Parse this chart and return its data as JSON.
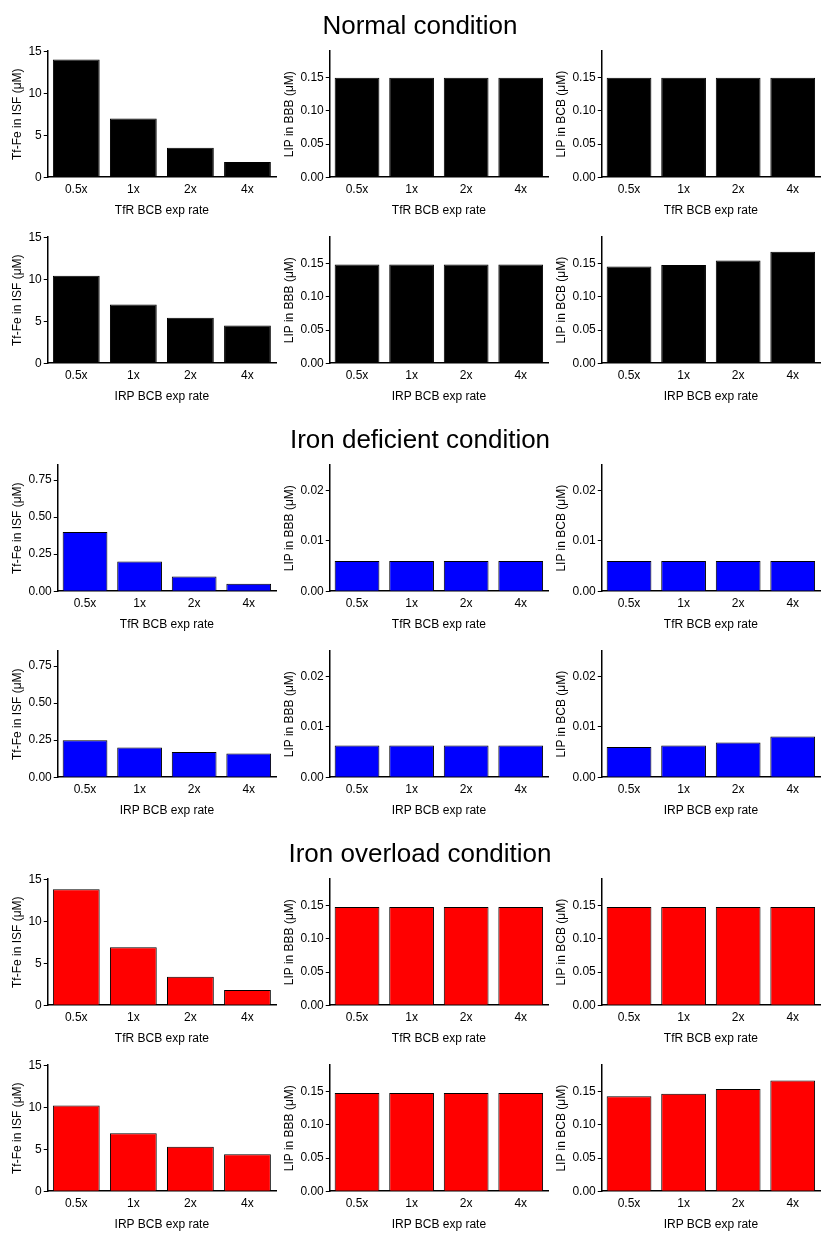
{
  "chart_data": [
    {
      "type": "other",
      "title": "Normal condition"
    },
    {
      "type": "bar",
      "categories": [
        "0.5x",
        "1x",
        "2x",
        "4x"
      ],
      "values": [
        14,
        7,
        3.5,
        1.8
      ],
      "color": "#000000",
      "xlabel": "TfR BCB exp rate",
      "ylabel": "Tf-Fe in ISF (μM)",
      "ylim": [
        0,
        15
      ],
      "yticks": [
        0,
        5,
        10,
        15
      ],
      "grid": false,
      "legend": false
    },
    {
      "type": "bar",
      "categories": [
        "0.5x",
        "1x",
        "2x",
        "4x"
      ],
      "values": [
        0.15,
        0.15,
        0.15,
        0.15
      ],
      "color": "#000000",
      "xlabel": "TfR BCB exp rate",
      "ylabel": "LIP in BBB (μM)",
      "ylim": [
        0,
        0.19
      ],
      "yticks": [
        {
          "value": 0,
          "label": "0.00"
        },
        {
          "value": 0.05,
          "label": "0.05"
        },
        {
          "value": 0.1,
          "label": "0.10"
        },
        {
          "value": 0.15,
          "label": "0.15"
        }
      ],
      "grid": false,
      "legend": false
    },
    {
      "type": "bar",
      "categories": [
        "0.5x",
        "1x",
        "2x",
        "4x"
      ],
      "values": [
        0.15,
        0.15,
        0.15,
        0.15
      ],
      "color": "#000000",
      "xlabel": "TfR BCB exp rate",
      "ylabel": "LIP in BCB (μM)",
      "ylim": [
        0,
        0.19
      ],
      "yticks": [
        {
          "value": 0,
          "label": "0.00"
        },
        {
          "value": 0.05,
          "label": "0.05"
        },
        {
          "value": 0.1,
          "label": "0.10"
        },
        {
          "value": 0.15,
          "label": "0.15"
        }
      ],
      "grid": false,
      "legend": false
    },
    {
      "type": "bar",
      "categories": [
        "0.5x",
        "1x",
        "2x",
        "4x"
      ],
      "values": [
        10.4,
        7.0,
        5.4,
        4.5
      ],
      "color": "#000000",
      "xlabel": "IRP BCB exp rate",
      "ylabel": "Tf-Fe in ISF (μM)",
      "ylim": [
        0,
        15
      ],
      "yticks": [
        0,
        5,
        10,
        15
      ],
      "grid": false,
      "legend": false
    },
    {
      "type": "bar",
      "categories": [
        "0.5x",
        "1x",
        "2x",
        "4x"
      ],
      "values": [
        0.149,
        0.149,
        0.149,
        0.149
      ],
      "color": "#000000",
      "xlabel": "IRP BCB exp rate",
      "ylabel": "LIP in BBB (μM)",
      "ylim": [
        0,
        0.19
      ],
      "yticks": [
        {
          "value": 0,
          "label": "0.00"
        },
        {
          "value": 0.05,
          "label": "0.05"
        },
        {
          "value": 0.1,
          "label": "0.10"
        },
        {
          "value": 0.15,
          "label": "0.15"
        }
      ],
      "grid": false,
      "legend": false
    },
    {
      "type": "bar",
      "categories": [
        "0.5x",
        "1x",
        "2x",
        "4x"
      ],
      "values": [
        0.146,
        0.148,
        0.155,
        0.168
      ],
      "color": "#000000",
      "xlabel": "IRP BCB exp rate",
      "ylabel": "LIP in BCB (μM)",
      "ylim": [
        0,
        0.19
      ],
      "yticks": [
        {
          "value": 0,
          "label": "0.00"
        },
        {
          "value": 0.05,
          "label": "0.05"
        },
        {
          "value": 0.1,
          "label": "0.10"
        },
        {
          "value": 0.15,
          "label": "0.15"
        }
      ],
      "grid": false,
      "legend": false
    },
    {
      "type": "other",
      "title": "Iron deficient condition"
    },
    {
      "type": "bar",
      "categories": [
        "0.5x",
        "1x",
        "2x",
        "4x"
      ],
      "values": [
        0.4,
        0.2,
        0.1,
        0.05
      ],
      "color": "#0000ff",
      "xlabel": "TfR BCB exp rate",
      "ylabel": "Tf-Fe in ISF (μM)",
      "ylim": [
        0,
        0.85
      ],
      "yticks": [
        {
          "value": 0,
          "label": "0.00"
        },
        {
          "value": 0.25,
          "label": "0.25"
        },
        {
          "value": 0.5,
          "label": "0.50"
        },
        {
          "value": 0.75,
          "label": "0.75"
        }
      ],
      "grid": false,
      "legend": false
    },
    {
      "type": "bar",
      "categories": [
        "0.5x",
        "1x",
        "2x",
        "4x"
      ],
      "values": [
        0.006,
        0.006,
        0.006,
        0.006
      ],
      "color": "#0000ff",
      "xlabel": "TfR BCB exp rate",
      "ylabel": "LIP in BBB (μM)",
      "ylim": [
        0,
        0.025
      ],
      "yticks": [
        {
          "value": 0,
          "label": "0.00"
        },
        {
          "value": 0.01,
          "label": "0.01"
        },
        {
          "value": 0.02,
          "label": "0.02"
        }
      ],
      "grid": false,
      "legend": false
    },
    {
      "type": "bar",
      "categories": [
        "0.5x",
        "1x",
        "2x",
        "4x"
      ],
      "values": [
        0.006,
        0.006,
        0.006,
        0.006
      ],
      "color": "#0000ff",
      "xlabel": "TfR BCB exp rate",
      "ylabel": "LIP in BCB (μM)",
      "ylim": [
        0,
        0.025
      ],
      "yticks": [
        {
          "value": 0,
          "label": "0.00"
        },
        {
          "value": 0.01,
          "label": "0.01"
        },
        {
          "value": 0.02,
          "label": "0.02"
        }
      ],
      "grid": false,
      "legend": false
    },
    {
      "type": "bar",
      "categories": [
        "0.5x",
        "1x",
        "2x",
        "4x"
      ],
      "values": [
        0.25,
        0.2,
        0.17,
        0.16
      ],
      "color": "#0000ff",
      "xlabel": "IRP BCB exp rate",
      "ylabel": "Tf-Fe in ISF (μM)",
      "ylim": [
        0,
        0.85
      ],
      "yticks": [
        {
          "value": 0,
          "label": "0.00"
        },
        {
          "value": 0.25,
          "label": "0.25"
        },
        {
          "value": 0.5,
          "label": "0.50"
        },
        {
          "value": 0.75,
          "label": "0.75"
        }
      ],
      "grid": false,
      "legend": false
    },
    {
      "type": "bar",
      "categories": [
        "0.5x",
        "1x",
        "2x",
        "4x"
      ],
      "values": [
        0.0063,
        0.0063,
        0.0063,
        0.0063
      ],
      "color": "#0000ff",
      "xlabel": "IRP BCB exp rate",
      "ylabel": "LIP in BBB (μM)",
      "ylim": [
        0,
        0.025
      ],
      "yticks": [
        {
          "value": 0,
          "label": "0.00"
        },
        {
          "value": 0.01,
          "label": "0.01"
        },
        {
          "value": 0.02,
          "label": "0.02"
        }
      ],
      "grid": false,
      "legend": false
    },
    {
      "type": "bar",
      "categories": [
        "0.5x",
        "1x",
        "2x",
        "4x"
      ],
      "values": [
        0.006,
        0.0063,
        0.0069,
        0.0081
      ],
      "color": "#0000ff",
      "xlabel": "IRP BCB exp rate",
      "ylabel": "LIP in BCB (μM)",
      "ylim": [
        0,
        0.025
      ],
      "yticks": [
        {
          "value": 0,
          "label": "0.00"
        },
        {
          "value": 0.01,
          "label": "0.01"
        },
        {
          "value": 0.02,
          "label": "0.02"
        }
      ],
      "grid": false,
      "legend": false
    },
    {
      "type": "other",
      "title": "Iron overload condition"
    },
    {
      "type": "bar",
      "categories": [
        "0.5x",
        "1x",
        "2x",
        "4x"
      ],
      "values": [
        13.8,
        6.9,
        3.4,
        1.8
      ],
      "color": "#ff0000",
      "xlabel": "TfR BCB exp rate",
      "ylabel": "Tf-Fe in ISF (μM)",
      "ylim": [
        0,
        15
      ],
      "yticks": [
        0,
        5,
        10,
        15
      ],
      "grid": false,
      "legend": false
    },
    {
      "type": "bar",
      "categories": [
        "0.5x",
        "1x",
        "2x",
        "4x"
      ],
      "values": [
        0.148,
        0.148,
        0.148,
        0.148
      ],
      "color": "#ff0000",
      "xlabel": "TfR BCB exp rate",
      "ylabel": "LIP in BBB (μM)",
      "ylim": [
        0,
        0.19
      ],
      "yticks": [
        {
          "value": 0,
          "label": "0.00"
        },
        {
          "value": 0.05,
          "label": "0.05"
        },
        {
          "value": 0.1,
          "label": "0.10"
        },
        {
          "value": 0.15,
          "label": "0.15"
        }
      ],
      "grid": false,
      "legend": false
    },
    {
      "type": "bar",
      "categories": [
        "0.5x",
        "1x",
        "2x",
        "4x"
      ],
      "values": [
        0.148,
        0.148,
        0.148,
        0.148
      ],
      "color": "#ff0000",
      "xlabel": "TfR BCB exp rate",
      "ylabel": "LIP in BCB (μM)",
      "ylim": [
        0,
        0.19
      ],
      "yticks": [
        {
          "value": 0,
          "label": "0.00"
        },
        {
          "value": 0.05,
          "label": "0.05"
        },
        {
          "value": 0.1,
          "label": "0.10"
        },
        {
          "value": 0.15,
          "label": "0.15"
        }
      ],
      "grid": false,
      "legend": false
    },
    {
      "type": "bar",
      "categories": [
        "0.5x",
        "1x",
        "2x",
        "4x"
      ],
      "values": [
        10.2,
        6.9,
        5.3,
        4.4
      ],
      "color": "#ff0000",
      "xlabel": "IRP BCB exp rate",
      "ylabel": "Tf-Fe in ISF (μM)",
      "ylim": [
        0,
        15
      ],
      "yticks": [
        0,
        5,
        10,
        15
      ],
      "grid": false,
      "legend": false
    },
    {
      "type": "bar",
      "categories": [
        "0.5x",
        "1x",
        "2x",
        "4x"
      ],
      "values": [
        0.148,
        0.148,
        0.148,
        0.148
      ],
      "color": "#ff0000",
      "xlabel": "IRP BCB exp rate",
      "ylabel": "LIP in BBB (μM)",
      "ylim": [
        0,
        0.19
      ],
      "yticks": [
        {
          "value": 0,
          "label": "0.00"
        },
        {
          "value": 0.05,
          "label": "0.05"
        },
        {
          "value": 0.1,
          "label": "0.10"
        },
        {
          "value": 0.15,
          "label": "0.15"
        }
      ],
      "grid": false,
      "legend": false
    },
    {
      "type": "bar",
      "categories": [
        "0.5x",
        "1x",
        "2x",
        "4x"
      ],
      "values": [
        0.143,
        0.147,
        0.154,
        0.167
      ],
      "color": "#ff0000",
      "xlabel": "IRP BCB exp rate",
      "ylabel": "LIP in BCB (μM)",
      "ylim": [
        0,
        0.19
      ],
      "yticks": [
        {
          "value": 0,
          "label": "0.00"
        },
        {
          "value": 0.05,
          "label": "0.05"
        },
        {
          "value": 0.1,
          "label": "0.10"
        },
        {
          "value": 0.15,
          "label": "0.15"
        }
      ],
      "grid": false,
      "legend": false
    }
  ]
}
